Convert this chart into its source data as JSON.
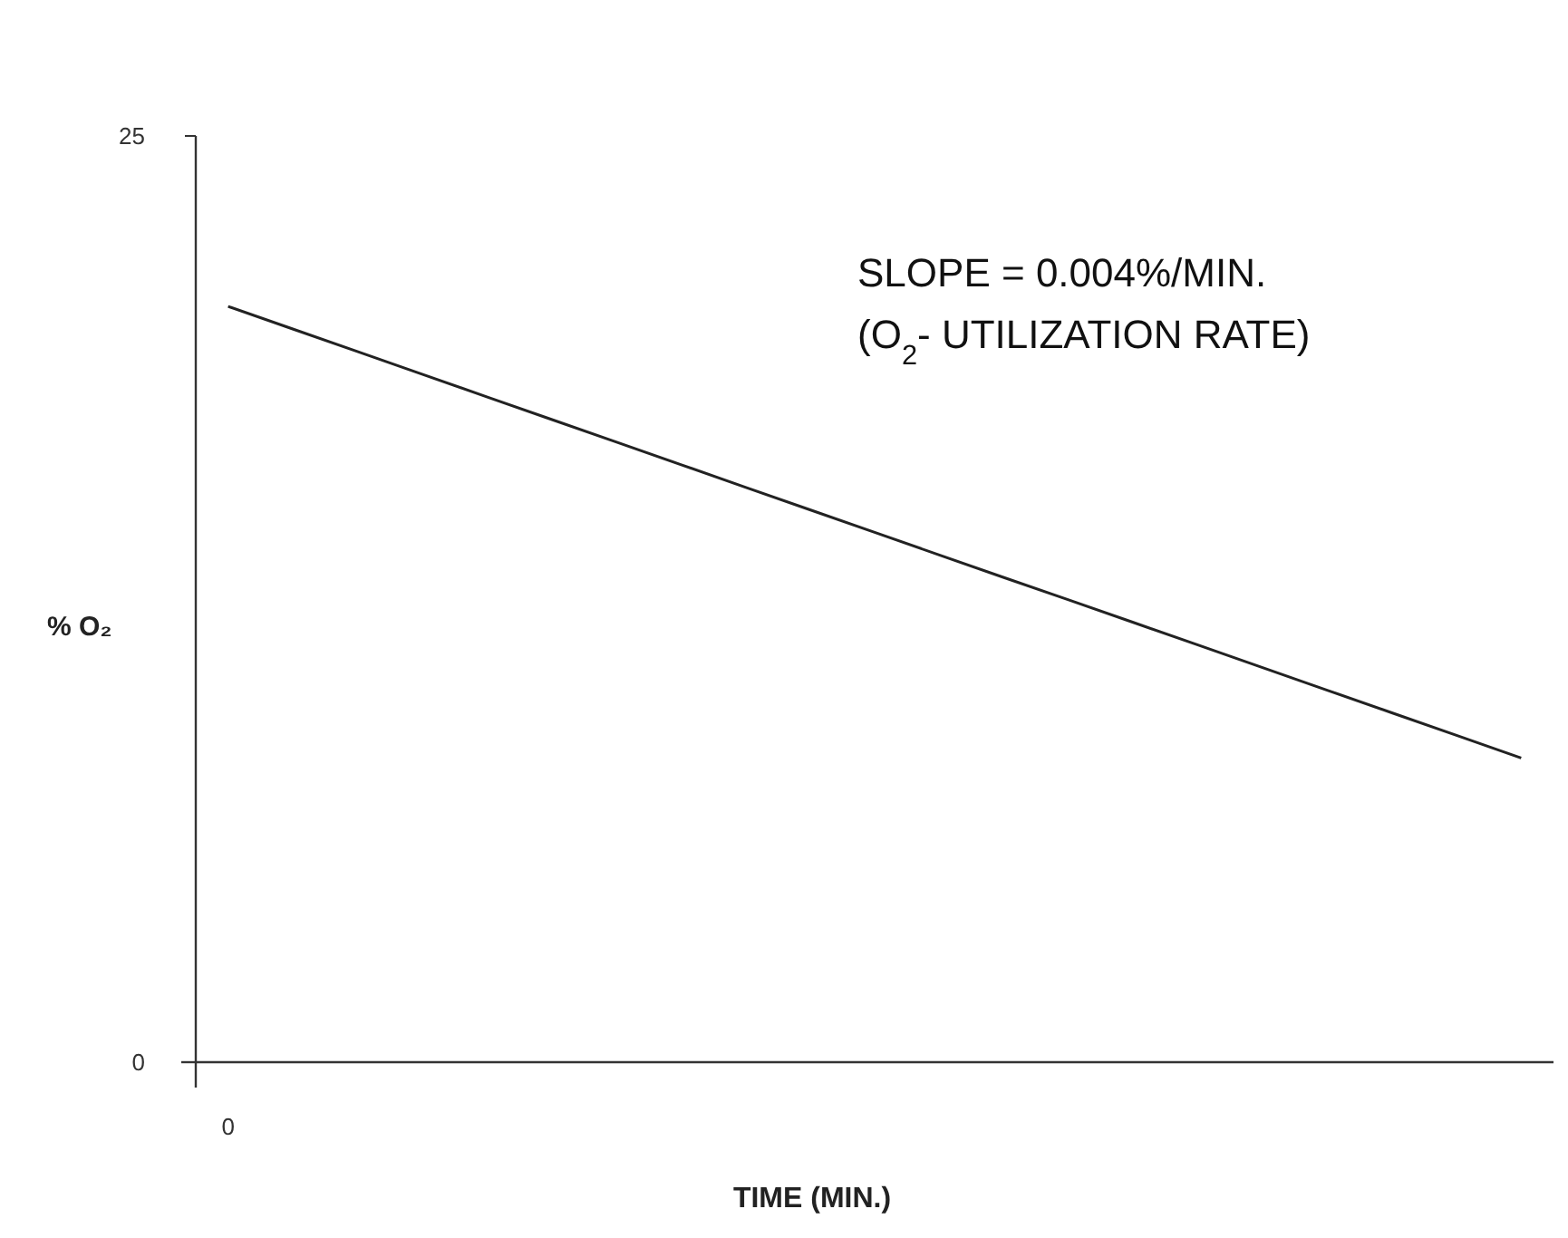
{
  "chart_data": {
    "type": "line",
    "xlabel": "TIME (MIN.)",
    "ylabel": "% O₂",
    "categories": [
      "0",
      null,
      null,
      null,
      null,
      null,
      null,
      null,
      null,
      null,
      null,
      null,
      null,
      null,
      null,
      null,
      null,
      null,
      null,
      null,
      null
    ],
    "series": [
      {
        "color": "#222222",
        "values": [
          20.4,
          19.79,
          19.18,
          18.57,
          17.96,
          17.35,
          16.74,
          16.13,
          15.52,
          14.91,
          14.3,
          13.69,
          13.08,
          12.48,
          11.87,
          11.26,
          10.65,
          10.04,
          9.43,
          8.82,
          8.21
        ]
      }
    ],
    "ylim": [
      0,
      25
    ],
    "yticks": [
      0,
      25
    ],
    "grid": false,
    "marker": "none",
    "line_style": "solid",
    "annotations": [
      "SLOPE = 0.004%/MIN.",
      "(O$_{2}$- UTILIZATION RATE)"
    ]
  }
}
